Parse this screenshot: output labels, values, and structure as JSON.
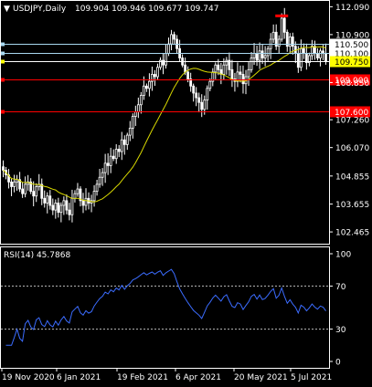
{
  "chart_data": [
    {
      "type": "candlestick",
      "panel": "main",
      "symbol_label": "USDJPY,Daily",
      "ohlc_label": "109.904 109.946 109.677 109.747",
      "ylim": [
        102.0,
        112.3
      ],
      "y_ticks": [
        "112.090",
        "110.900",
        "108.850",
        "107.260",
        "106.070",
        "104.855",
        "103.655",
        "102.465"
      ],
      "price_lines": [
        {
          "label": "110.500",
          "value": 110.5,
          "line_color": "#a8d8f0",
          "tag_bg": "#ffffff",
          "tag_fg": "#000000",
          "marker": "#a8d8f0"
        },
        {
          "label": "110.100",
          "value": 110.1,
          "line_color": "#a8d8f0",
          "tag_bg": "#ffffff",
          "tag_fg": "#000000",
          "marker": "#a8d8f0"
        },
        {
          "label": "109.750",
          "value": 109.75,
          "line_color": "#ffffff",
          "tag_bg": "#ffff00",
          "tag_fg": "#000000",
          "marker": "#ffff00"
        },
        {
          "label": "109.000",
          "value": 109.0,
          "line_color": "#ff0000",
          "tag_bg": "#ff0000",
          "tag_fg": "#ffffff",
          "marker": "#ff0000"
        },
        {
          "label": "107.600",
          "value": 107.6,
          "line_color": "#ff0000",
          "tag_bg": "#ff0000",
          "tag_fg": "#ffffff",
          "marker": "#ff0000"
        }
      ],
      "top_marker_value": 111.7,
      "top_marker_color": "#ff0000",
      "closes": [
        105.1,
        104.9,
        104.6,
        104.4,
        104.6,
        104.7,
        104.3,
        104.1,
        104.5,
        104.6,
        104.2,
        104.0,
        104.4,
        104.5,
        103.9,
        103.7,
        104.0,
        103.6,
        103.4,
        103.7,
        103.3,
        103.6,
        103.8,
        103.4,
        103.2,
        103.9,
        104.1,
        104.3,
        103.8,
        103.6,
        103.9,
        103.7,
        103.8,
        104.2,
        104.5,
        104.8,
        105.0,
        105.4,
        105.3,
        105.7,
        105.6,
        106.0,
        105.9,
        106.4,
        106.2,
        106.6,
        106.9,
        107.4,
        107.6,
        107.9,
        108.3,
        108.7,
        108.6,
        108.9,
        109.2,
        109.1,
        109.5,
        109.8,
        109.6,
        110.1,
        110.5,
        110.9,
        110.7,
        110.3,
        109.9,
        109.6,
        109.3,
        109.0,
        108.7,
        108.4,
        108.2,
        108.0,
        107.7,
        108.1,
        108.6,
        108.9,
        109.3,
        109.6,
        109.4,
        109.2,
        109.6,
        109.8,
        109.4,
        109.0,
        108.9,
        109.3,
        109.2,
        108.8,
        109.1,
        109.4,
        109.9,
        110.1,
        109.8,
        110.2,
        109.9,
        110.0,
        110.3,
        110.7,
        111.0,
        110.4,
        110.7,
        111.6,
        111.0,
        110.4,
        110.8,
        110.4,
        110.1,
        109.5,
        110.3,
        110.1,
        109.7,
        110.0,
        110.4,
        110.1,
        109.9,
        110.2,
        110.1,
        109.747
      ],
      "ma_label": "moving average",
      "ma_color": "#d8d800",
      "candle_colors": {
        "body": "#ffffff",
        "wick": "#ffffff"
      }
    },
    {
      "type": "line",
      "panel": "rsi",
      "label": "RSI(14) 45.7868",
      "ylim": [
        0,
        100
      ],
      "y_ticks": [
        "100",
        "70",
        "30",
        "0"
      ],
      "levels": [
        70,
        30
      ],
      "color": "#3b6cff"
    }
  ],
  "x_axis": {
    "labels": [
      "19 Nov 2020",
      "6 Jan 2021",
      "19 Feb 2021",
      "6 Apr 2021",
      "20 May 2021",
      "5 Jul 2021"
    ]
  }
}
